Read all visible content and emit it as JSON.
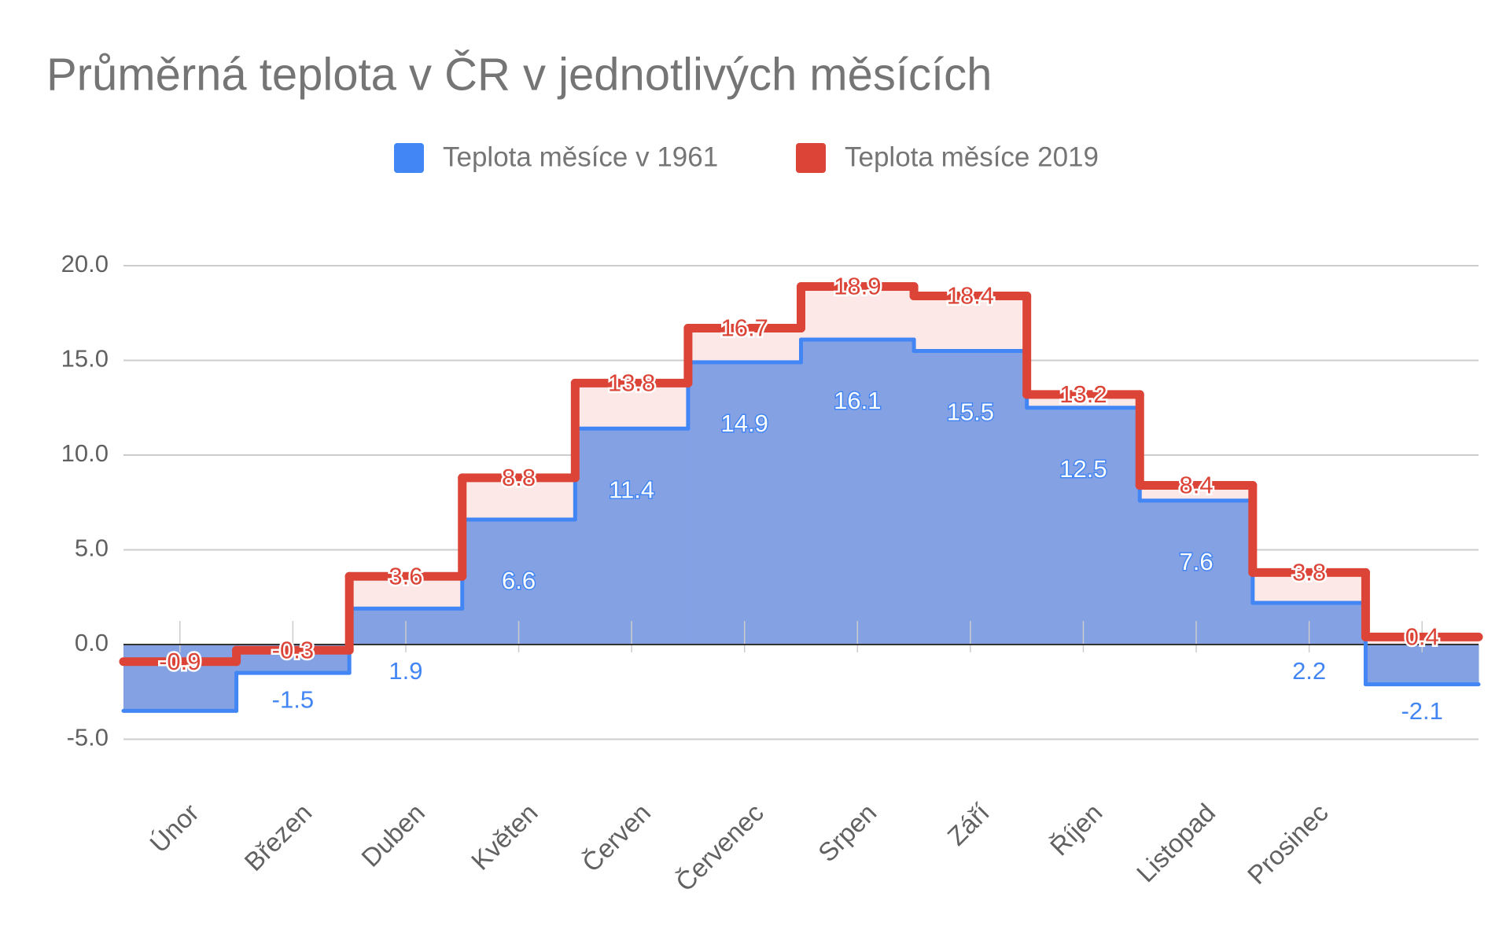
{
  "chart_data": {
    "type": "stepped_area",
    "title": "Průměrná teplota v ČR v jednotlivých měsících",
    "categories": [
      "Únor",
      "Březen",
      "Duben",
      "Květen",
      "Červen",
      "Červenec",
      "Srpen",
      "Září",
      "Říjen",
      "Listopad",
      "Prosinec",
      null
    ],
    "series": [
      {
        "name": "Teplota měsíce v 1961",
        "color": "#4285f4",
        "fill": "#84a1e4",
        "values": [
          -3.5,
          -1.5,
          1.9,
          6.6,
          11.4,
          14.9,
          16.1,
          15.5,
          12.5,
          7.6,
          2.2,
          -2.1
        ],
        "value_labels": [
          null,
          "-1.5",
          "1.9",
          "6.6",
          "11.4",
          "14.9",
          "16.1",
          "15.5",
          "12.5",
          "7.6",
          "2.2",
          "-2.1"
        ]
      },
      {
        "name": "Teplota měsíce 2019",
        "color": "#db4437",
        "fill": "#fce8e6",
        "values": [
          -0.9,
          -0.3,
          3.6,
          8.8,
          13.8,
          16.7,
          18.9,
          18.4,
          13.2,
          8.4,
          3.8,
          0.4
        ]
      }
    ],
    "ylim": [
      -6.5,
      20
    ],
    "yticks": [
      {
        "value": -5,
        "label": "-5.0"
      },
      {
        "value": 0,
        "label": "0.0"
      },
      {
        "value": 5,
        "label": "5.0"
      },
      {
        "value": 10,
        "label": "10.0"
      },
      {
        "value": 15,
        "label": "15.0"
      },
      {
        "value": 20,
        "label": "20.0"
      }
    ],
    "grid": true,
    "legend": "top"
  }
}
